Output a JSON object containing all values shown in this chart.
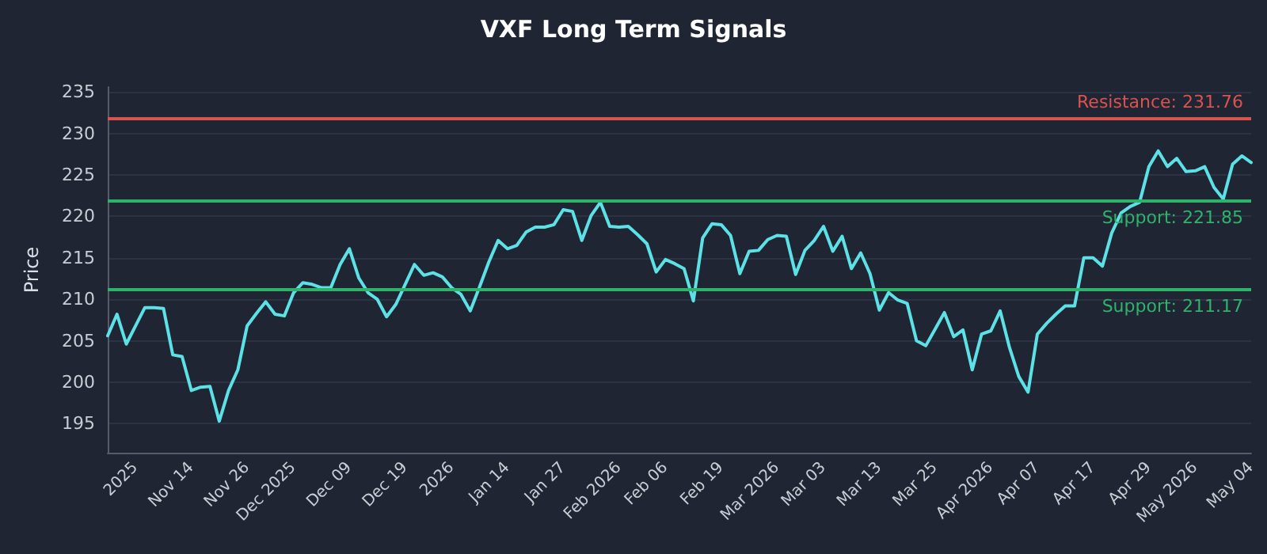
{
  "chart_data": {
    "type": "line",
    "title": "VXF Long Term Signals",
    "ylabel": "Price",
    "categories": [
      null,
      null,
      null,
      "2025",
      null,
      null,
      null,
      null,
      null,
      "Nov 14",
      null,
      null,
      null,
      null,
      null,
      "Nov 26",
      null,
      null,
      null,
      null,
      "Dec 2025",
      null,
      null,
      null,
      null,
      null,
      "Dec 09",
      null,
      null,
      null,
      null,
      null,
      "Dec 19",
      null,
      null,
      null,
      null,
      "2026",
      null,
      null,
      null,
      null,
      null,
      "Jan 14",
      null,
      null,
      null,
      null,
      null,
      "Jan 27",
      null,
      null,
      null,
      null,
      null,
      "Feb 2026",
      null,
      null,
      null,
      null,
      "Feb 06",
      null,
      null,
      null,
      null,
      null,
      "Feb 19",
      null,
      null,
      null,
      null,
      null,
      "Mar 2026",
      null,
      null,
      null,
      null,
      "Mar 03",
      null,
      null,
      null,
      null,
      null,
      "Mar 13",
      null,
      null,
      null,
      null,
      null,
      "Mar 25",
      null,
      null,
      null,
      null,
      null,
      "Apr 2026",
      null,
      null,
      null,
      null,
      "Apr 07",
      null,
      null,
      null,
      null,
      null,
      "Apr 17",
      null,
      null,
      null,
      null,
      null,
      "Apr 29",
      null,
      null,
      null,
      null,
      "May 2026",
      null,
      null,
      null,
      null,
      null,
      "May 04"
    ],
    "series": [
      {
        "color": "#5ce1e6",
        "values": [
          205.6,
          208.2,
          204.6,
          206.8,
          209.0,
          209.0,
          208.9,
          203.3,
          203.1,
          199.0,
          199.4,
          199.5,
          195.3,
          199.0,
          201.5,
          206.8,
          208.3,
          209.7,
          208.2,
          208.0,
          210.8,
          212.0,
          211.8,
          211.4,
          211.4,
          214.2,
          216.1,
          212.6,
          210.8,
          210.0,
          207.9,
          209.4,
          211.8,
          214.2,
          212.9,
          213.2,
          212.7,
          211.4,
          210.6,
          208.6,
          211.5,
          214.5,
          217.1,
          216.1,
          216.5,
          218.1,
          218.7,
          218.7,
          219.0,
          220.8,
          220.6,
          217.1,
          220.1,
          221.7,
          218.8,
          218.7,
          218.8,
          217.8,
          216.7,
          213.3,
          214.8,
          214.3,
          213.7,
          209.8,
          217.4,
          219.1,
          219.0,
          217.7,
          213.1,
          215.8,
          215.9,
          217.2,
          217.7,
          217.6,
          213.0,
          215.9,
          217.1,
          218.8,
          215.8,
          217.6,
          213.7,
          215.6,
          213.1,
          208.7,
          210.8,
          209.9,
          209.5,
          205.0,
          204.4,
          206.4,
          208.4,
          205.5,
          206.3,
          201.5,
          205.8,
          206.2,
          208.6,
          204.2,
          200.7,
          198.8,
          205.8,
          207.1,
          208.2,
          209.2,
          209.2,
          215.0,
          215.0,
          214.0,
          218.0,
          220.4,
          221.2,
          221.7,
          226.0,
          227.9,
          226.0,
          227.0,
          225.4,
          225.5,
          226.0,
          223.5,
          222.1,
          226.3,
          227.3,
          226.5
        ]
      }
    ],
    "ylim": [
      191.5,
      235.6
    ],
    "yticks": [
      195,
      200,
      205,
      210,
      215,
      220,
      225,
      230,
      235
    ],
    "ref_lines": [
      {
        "axis": "y",
        "value": 231.76,
        "label": "Resistance: 231.76",
        "color": "#d9534f"
      },
      {
        "axis": "y",
        "value": 221.85,
        "label": "Support: 221.85",
        "color": "#2fb36b"
      },
      {
        "axis": "y",
        "value": 211.17,
        "label": "Support: 211.17",
        "color": "#2fb36b"
      }
    ],
    "grid": "y",
    "marker": "none",
    "line_style": "solid"
  }
}
